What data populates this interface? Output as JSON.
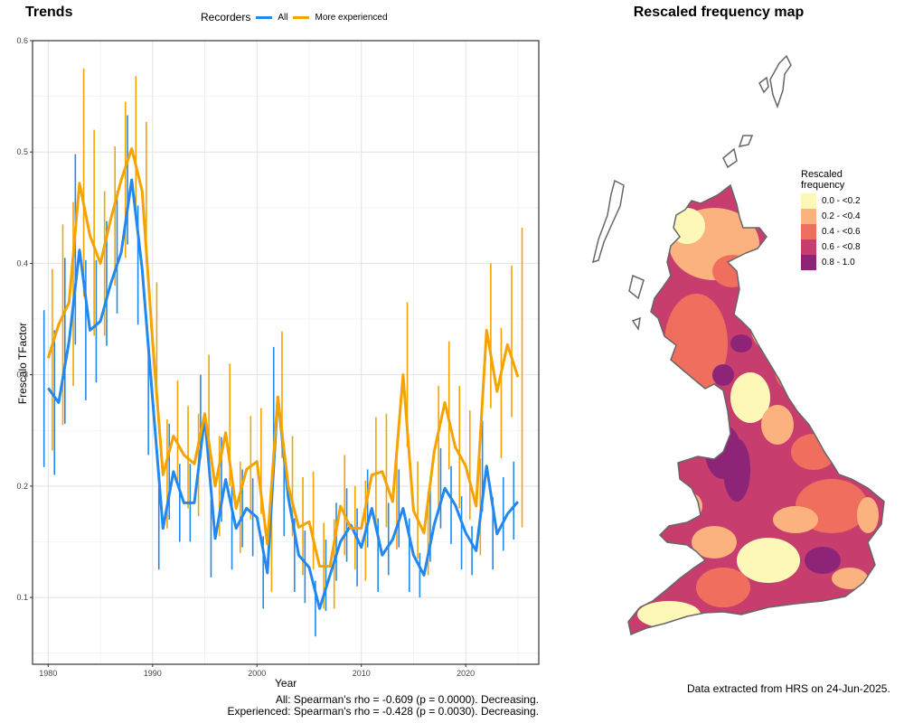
{
  "left_panel": {
    "title": "Trends",
    "legend": {
      "title": "Recorders",
      "items": [
        {
          "label": "All",
          "color": "#2288ee"
        },
        {
          "label": "More experienced",
          "color": "#f5a300"
        }
      ]
    },
    "stats": [
      "All: Spearman's rho = -0.609 (p = 0.0000). Decreasing.",
      "Experienced: Spearman's rho = -0.428 (p = 0.0030). Decreasing."
    ]
  },
  "right_panel": {
    "title": "Rescaled frequency map",
    "legend": {
      "title_line1": "Rescaled",
      "title_line2": "frequency",
      "items": [
        {
          "label": "0.0 - <0.2",
          "color": "#fdf8b8"
        },
        {
          "label": "0.2 - <0.4",
          "color": "#fbb27e"
        },
        {
          "label": "0.4 - <0.6",
          "color": "#f06e5e"
        },
        {
          "label": "0.6 - <0.8",
          "color": "#c63d6e"
        },
        {
          "label": "0.8 - 1.0",
          "color": "#8e2478"
        }
      ]
    },
    "credit": "Data extracted from HRS on 24-Jun-2025."
  },
  "chart_data": {
    "type": "line",
    "title": "Trends",
    "xlabel": "Year",
    "ylabel": "Frescalo TFactor",
    "xlim": [
      1978.5,
      2027
    ],
    "ylim": [
      0.04,
      0.6
    ],
    "xticks": [
      1980,
      1990,
      2000,
      2010,
      2020
    ],
    "yticks": [
      0.1,
      0.2,
      0.3,
      0.4,
      0.5,
      0.6
    ],
    "grid": true,
    "legend_position": "top",
    "x": [
      1980,
      1981,
      1982,
      1983,
      1984,
      1985,
      1986,
      1987,
      1988,
      1989,
      1990,
      1991,
      1992,
      1993,
      1994,
      1995,
      1996,
      1997,
      1998,
      1999,
      2000,
      2001,
      2002,
      2003,
      2004,
      2005,
      2006,
      2007,
      2008,
      2009,
      2010,
      2011,
      2012,
      2013,
      2014,
      2015,
      2016,
      2017,
      2018,
      2019,
      2020,
      2021,
      2022,
      2023,
      2024,
      2025
    ],
    "series": [
      {
        "name": "All",
        "color": "#2288ee",
        "values": [
          0.288,
          0.275,
          0.33,
          0.412,
          0.34,
          0.348,
          0.382,
          0.41,
          0.475,
          0.395,
          0.278,
          0.162,
          0.213,
          0.185,
          0.185,
          0.262,
          0.153,
          0.206,
          0.162,
          0.18,
          0.172,
          0.122,
          0.28,
          0.19,
          0.138,
          0.127,
          0.09,
          0.12,
          0.15,
          0.165,
          0.145,
          0.18,
          0.138,
          0.152,
          0.18,
          0.138,
          0.12,
          0.166,
          0.198,
          0.183,
          0.158,
          0.142,
          0.218,
          0.157,
          0.175,
          0.186
        ],
        "err_low": [
          0.217,
          0.21,
          0.256,
          0.327,
          0.277,
          0.293,
          0.326,
          0.355,
          0.417,
          0.345,
          0.228,
          0.125,
          0.17,
          0.15,
          0.15,
          0.225,
          0.118,
          0.168,
          0.125,
          0.145,
          0.137,
          0.09,
          0.235,
          0.155,
          0.105,
          0.095,
          0.065,
          0.088,
          0.115,
          0.132,
          0.11,
          0.145,
          0.105,
          0.12,
          0.145,
          0.105,
          0.1,
          0.132,
          0.162,
          0.148,
          0.125,
          0.12,
          0.177,
          0.125,
          0.142,
          0.152
        ],
        "err_high": [
          0.358,
          0.34,
          0.405,
          0.498,
          0.403,
          0.403,
          0.438,
          0.465,
          0.533,
          0.452,
          0.33,
          0.2,
          0.256,
          0.22,
          0.22,
          0.3,
          0.188,
          0.244,
          0.2,
          0.215,
          0.207,
          0.155,
          0.325,
          0.225,
          0.171,
          0.16,
          0.115,
          0.152,
          0.185,
          0.198,
          0.18,
          0.215,
          0.171,
          0.185,
          0.215,
          0.171,
          0.14,
          0.2,
          0.234,
          0.218,
          0.191,
          0.164,
          0.259,
          0.19,
          0.208,
          0.222
        ]
      },
      {
        "name": "More experienced",
        "color": "#f5a300",
        "values": [
          0.315,
          0.345,
          0.365,
          0.472,
          0.425,
          0.4,
          0.44,
          0.475,
          0.503,
          0.465,
          0.33,
          0.21,
          0.245,
          0.228,
          0.22,
          0.265,
          0.2,
          0.248,
          0.18,
          0.215,
          0.222,
          0.148,
          0.28,
          0.2,
          0.163,
          0.168,
          0.128,
          0.128,
          0.182,
          0.162,
          0.162,
          0.21,
          0.213,
          0.186,
          0.3,
          0.178,
          0.158,
          0.232,
          0.275,
          0.235,
          0.218,
          0.182,
          0.34,
          0.285,
          0.327,
          0.298
        ],
        "err_low": [
          0.232,
          0.255,
          0.29,
          0.37,
          0.335,
          0.335,
          0.38,
          0.405,
          0.44,
          0.4,
          0.278,
          0.162,
          0.2,
          0.18,
          0.173,
          0.22,
          0.155,
          0.2,
          0.14,
          0.17,
          0.175,
          0.105,
          0.225,
          0.155,
          0.12,
          0.125,
          0.09,
          0.09,
          0.138,
          0.125,
          0.115,
          0.16,
          0.163,
          0.143,
          0.235,
          0.135,
          0.12,
          0.175,
          0.215,
          0.18,
          0.17,
          0.138,
          0.27,
          0.225,
          0.262,
          0.163
        ],
        "err_high": [
          0.395,
          0.435,
          0.455,
          0.575,
          0.52,
          0.465,
          0.505,
          0.545,
          0.568,
          0.527,
          0.383,
          0.26,
          0.295,
          0.272,
          0.265,
          0.318,
          0.245,
          0.31,
          0.222,
          0.263,
          0.27,
          0.192,
          0.339,
          0.245,
          0.208,
          0.213,
          0.167,
          0.17,
          0.228,
          0.2,
          0.205,
          0.262,
          0.265,
          0.23,
          0.365,
          0.222,
          0.195,
          0.29,
          0.33,
          0.29,
          0.268,
          0.225,
          0.4,
          0.342,
          0.398,
          0.432
        ]
      }
    ]
  }
}
